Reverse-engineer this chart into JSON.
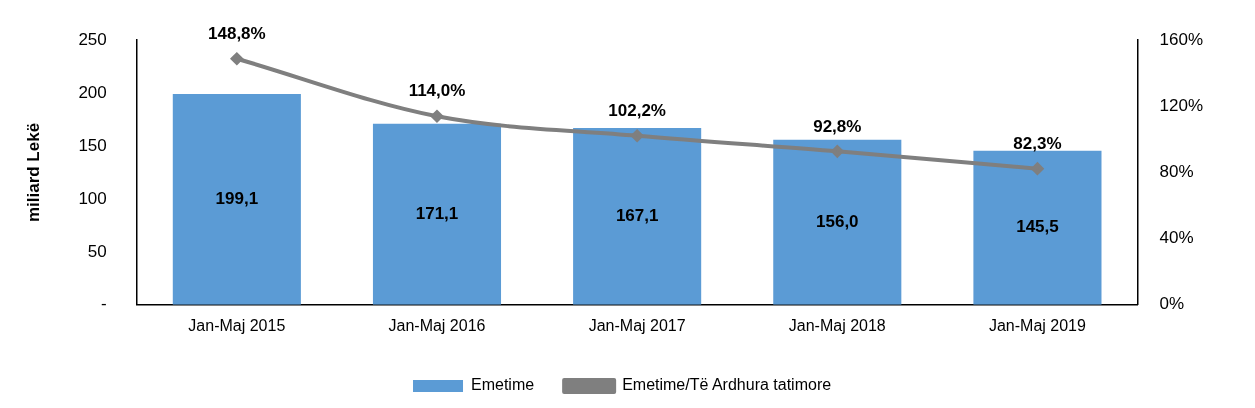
{
  "chart_data": {
    "type": "bar",
    "ylabel": "miliard Lekë",
    "categories": [
      "Jan-Maj 2015",
      "Jan-Maj 2016",
      "Jan-Maj 2017",
      "Jan-Maj 2018",
      "Jan-Maj 2019"
    ],
    "series": [
      {
        "name": "Emetime",
        "color": "#5b9bd5",
        "values": [
          199.1,
          171.1,
          167.1,
          156.0,
          145.5
        ],
        "value_labels": [
          "199,1",
          "171,1",
          "167,1",
          "156,0",
          "145,5"
        ]
      },
      {
        "name": "Emetime/Të Ardhura tatimore",
        "type": "line",
        "axis": "y2",
        "color": "#7f7f7f",
        "values": [
          148.8,
          114.0,
          102.2,
          92.8,
          82.3
        ],
        "value_labels": [
          "148,8%",
          "114,0%",
          "102,2%",
          "92,8%",
          "82,3%"
        ],
        "marker": "diamond"
      }
    ],
    "ylim": [
      0,
      250
    ],
    "yticks": [
      {
        "value": 0,
        "label": "-"
      },
      50,
      100,
      150,
      200,
      250
    ],
    "y2lim": [
      0,
      160
    ],
    "y2ticks": [
      {
        "value": 0,
        "label": "0%"
      },
      {
        "value": 40,
        "label": "40%"
      },
      {
        "value": 80,
        "label": "80%"
      },
      {
        "value": 120,
        "label": "120%"
      },
      {
        "value": 160,
        "label": "160%"
      }
    ],
    "grid": false,
    "legend": "bottom"
  }
}
